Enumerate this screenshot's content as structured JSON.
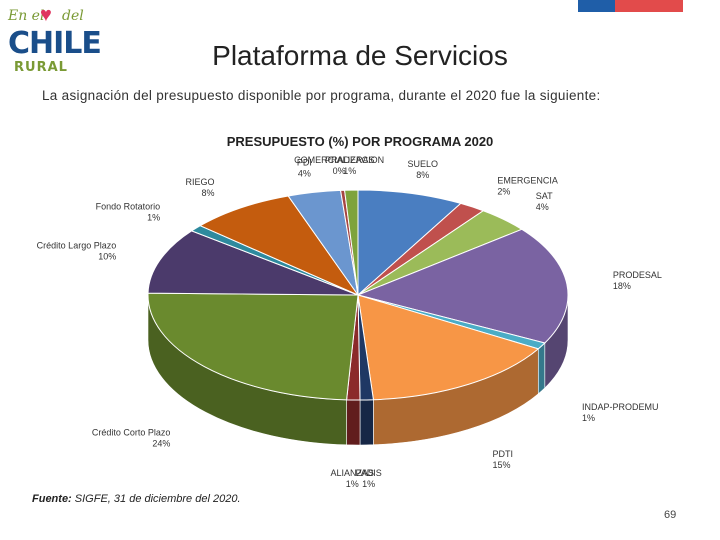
{
  "header": {
    "logo_top": "En el",
    "logo_heart": "♥",
    "logo_del": "del",
    "logo_main": "CHILE",
    "logo_sub": "RURAL",
    "title": "Plataforma de Servicios"
  },
  "intro_text": "La asignación del presupuesto disponible por programa, durante el 2020 fue la siguiente:",
  "source": {
    "label": "Fuente:",
    "text": " SIGFE, 31 de diciembre del 2020."
  },
  "page_number": "69",
  "colors": {
    "blue_bar": "#1f5ea8",
    "red_bar": "#e24b4b"
  },
  "chart_data": {
    "type": "pie",
    "title": "PRESUPUESTO (%) POR PROGRAMA 2020",
    "slices": [
      {
        "name": "SUELO",
        "value": 8,
        "label": "8%",
        "color": "#4a7ec1"
      },
      {
        "name": "EMERGENCIA",
        "value": 2,
        "label": "2%",
        "color": "#c0504d"
      },
      {
        "name": "SAT",
        "value": 4,
        "label": "4%",
        "color": "#9bbb59"
      },
      {
        "name": "PRODESAL",
        "value": 18,
        "label": "18%",
        "color": "#7a63a2"
      },
      {
        "name": "INDAP-PRODEMU",
        "value": 1,
        "label": "1%",
        "color": "#4bacc6"
      },
      {
        "name": "PDTI",
        "value": 15,
        "label": "15%",
        "color": "#f79646"
      },
      {
        "name": "PADIS",
        "value": 1,
        "label": "1%",
        "color": "#1f3864"
      },
      {
        "name": "ALIANZAS",
        "value": 1,
        "label": "1%",
        "color": "#8b2a2a"
      },
      {
        "name": "Crédito Corto Plazo",
        "value": 24,
        "label": "24%",
        "color": "#6a8a2e"
      },
      {
        "name": "Crédito Largo Plazo",
        "value": 10,
        "label": "10%",
        "color": "#4b3a6b"
      },
      {
        "name": "Fondo Rotatorio",
        "value": 1,
        "label": "1%",
        "color": "#2e8a9e"
      },
      {
        "name": "RIEGO",
        "value": 8,
        "label": "8%",
        "color": "#c45c0e"
      },
      {
        "name": "PDI",
        "value": 4,
        "label": "4%",
        "color": "#6b96cf"
      },
      {
        "name": "COMERCIALIZACION",
        "value": 0,
        "label": "0%",
        "color": "#a64542"
      },
      {
        "name": "PRADERAS",
        "value": 1,
        "label": "1%",
        "color": "#7ea33c"
      }
    ]
  }
}
